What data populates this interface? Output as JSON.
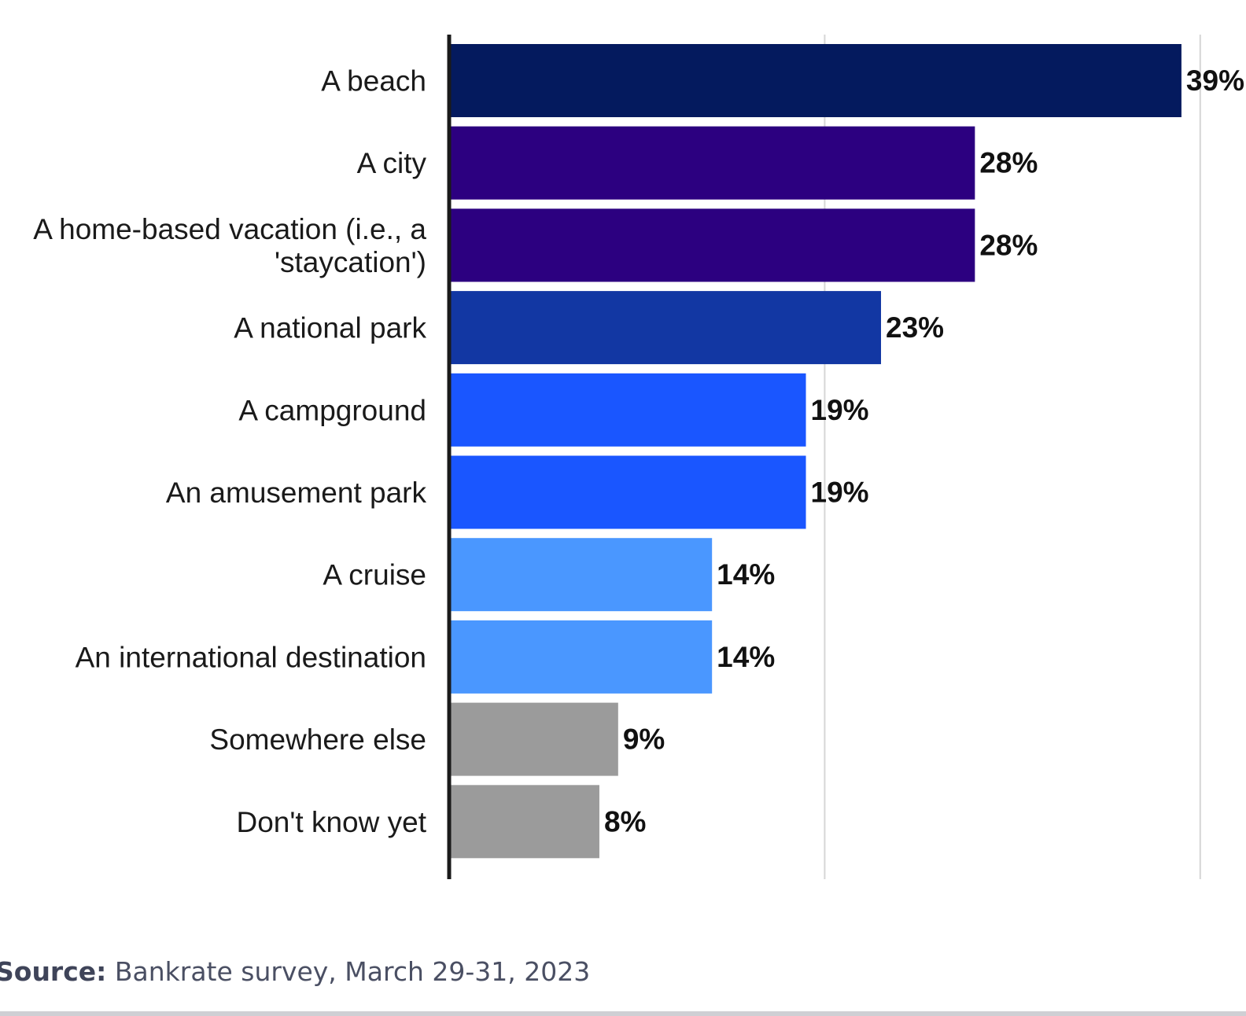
{
  "chart_data": {
    "type": "bar",
    "orientation": "horizontal",
    "categories": [
      "A beach",
      "A city",
      "A home-based vacation (i.e., a 'staycation')",
      "A national park",
      "A campground",
      "An amusement park",
      "A cruise",
      "An international destination",
      "Somewhere else",
      "Don't know yet"
    ],
    "category_lines": [
      [
        "A beach"
      ],
      [
        "A city"
      ],
      [
        "A home-based vacation (i.e., a",
        "'staycation')"
      ],
      [
        "A national park"
      ],
      [
        "A campground"
      ],
      [
        "An amusement park"
      ],
      [
        "A cruise"
      ],
      [
        "An international destination"
      ],
      [
        "Somewhere else"
      ],
      [
        "Don't know yet"
      ]
    ],
    "values": [
      39,
      28,
      28,
      23,
      19,
      19,
      14,
      14,
      9,
      8
    ],
    "value_labels": [
      "39%",
      "28%",
      "28%",
      "23%",
      "19%",
      "19%",
      "14%",
      "14%",
      "9%",
      "8%"
    ],
    "colors": [
      "#041a5e",
      "#2c0080",
      "#2c0080",
      "#1237a3",
      "#1a56ff",
      "#1a56ff",
      "#4a97ff",
      "#4a97ff",
      "#9b9b9b",
      "#9b9b9b"
    ],
    "xlim": [
      0,
      40
    ],
    "gridlines": [
      20,
      40
    ],
    "grid": true,
    "legend": false,
    "title": "",
    "xlabel": "",
    "ylabel": ""
  },
  "source": {
    "prefix": "Source:",
    "text": "Bankrate survey, March 29-31, 2023"
  }
}
